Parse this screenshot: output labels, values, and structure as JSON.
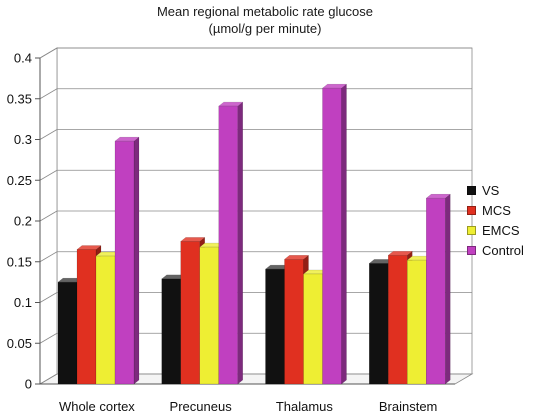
{
  "chart_data": {
    "type": "bar",
    "title": "Mean regional metabolic rate glucose",
    "subtitle": "(µmol/g per minute)",
    "categories": [
      "Whole cortex",
      "Precuneus",
      "Thalamus",
      "Brainstem"
    ],
    "series": [
      {
        "name": "VS",
        "color": "#111111",
        "values": [
          0.125,
          0.129,
          0.141,
          0.148
        ]
      },
      {
        "name": "MCS",
        "color": "#e03020",
        "values": [
          0.165,
          0.175,
          0.153,
          0.158
        ]
      },
      {
        "name": "EMCS",
        "color": "#eeee33",
        "values": [
          0.157,
          0.168,
          0.135,
          0.152
        ]
      },
      {
        "name": "Control",
        "color": "#c040c0",
        "values": [
          0.298,
          0.341,
          0.363,
          0.228
        ]
      }
    ],
    "y_ticks": [
      "0",
      "0.05",
      "0.1",
      "0.15",
      "0.2",
      "0.25",
      "0.3",
      "0.35",
      "0.4"
    ],
    "ylim": [
      0,
      0.4
    ],
    "grid": true,
    "legend_position": "right",
    "xlabel": "",
    "ylabel": ""
  }
}
